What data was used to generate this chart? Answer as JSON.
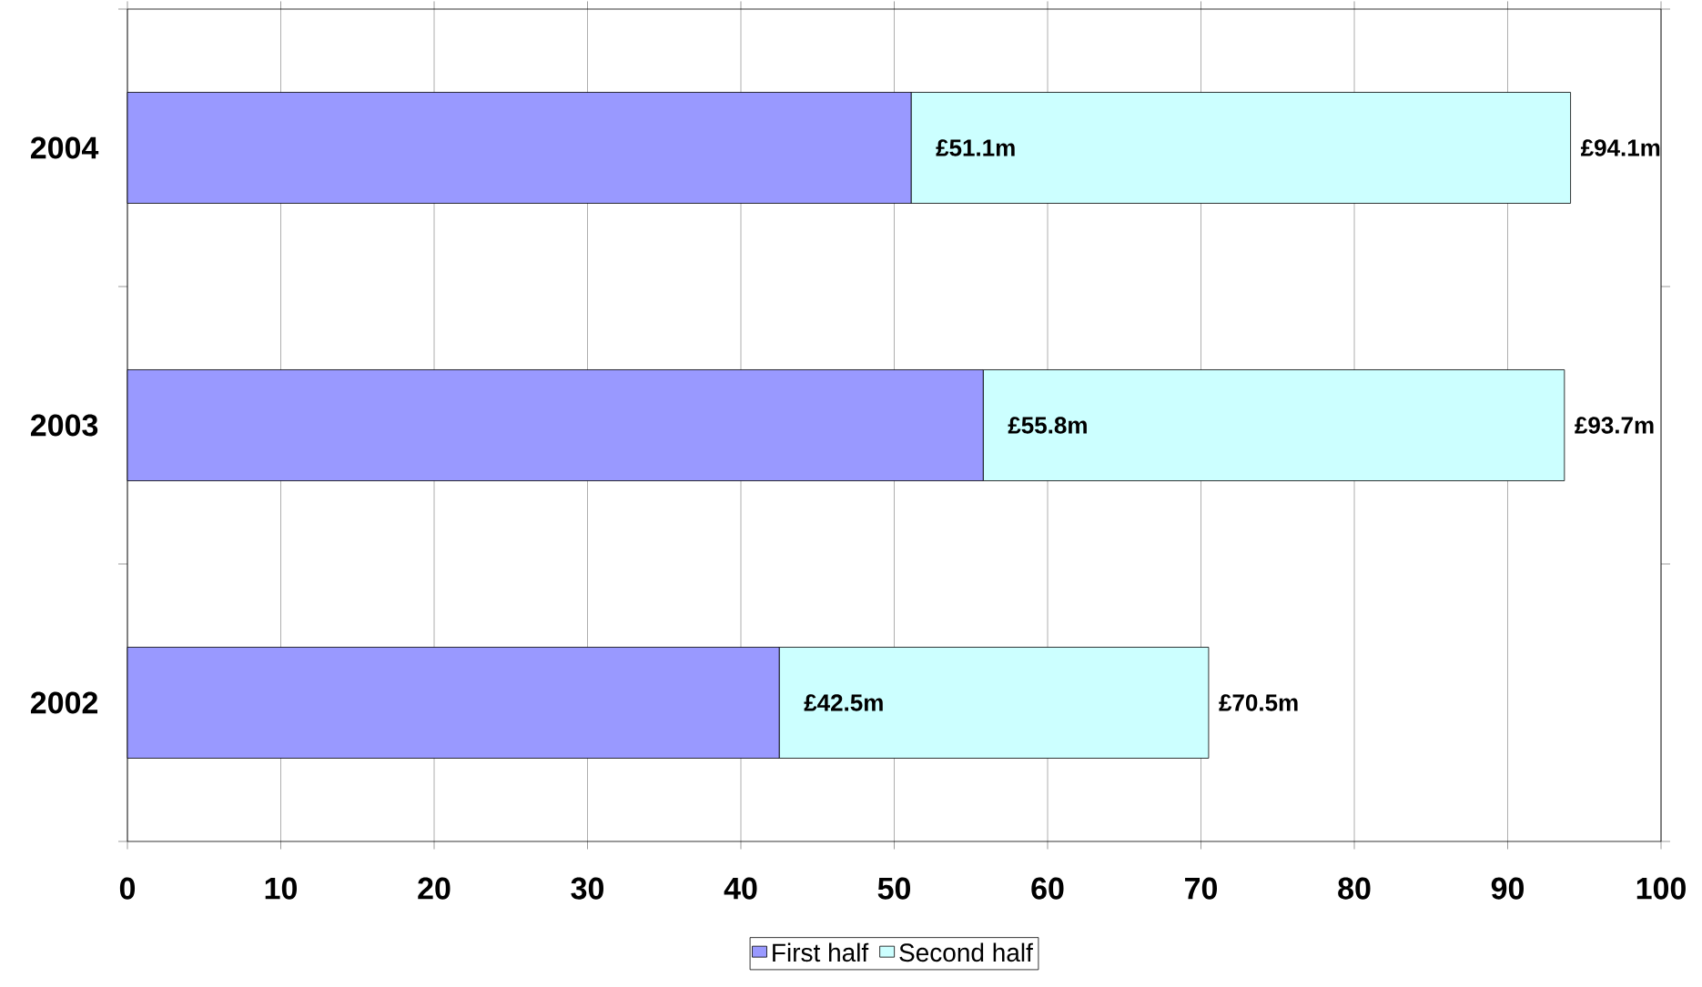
{
  "chart_data": {
    "type": "bar",
    "orientation": "horizontal",
    "stacked": true,
    "categories": [
      "2004",
      "2003",
      "2002"
    ],
    "series": [
      {
        "name": "First half",
        "color": "#9999ff",
        "values": [
          51.1,
          55.8,
          42.5
        ],
        "value_labels": [
          "£51.1m",
          "£55.8m",
          "£42.5m"
        ]
      },
      {
        "name": "Second half",
        "color": "#ccffff",
        "values": [
          43.0,
          37.9,
          28.0
        ]
      }
    ],
    "totals": [
      "£94.1m",
      "£93.7m",
      "£70.5m"
    ],
    "xlim": [
      0,
      100
    ],
    "xticks": [
      0,
      10,
      20,
      30,
      40,
      50,
      60,
      70,
      80,
      90,
      100
    ],
    "grid": "x",
    "legend": "bottom"
  }
}
